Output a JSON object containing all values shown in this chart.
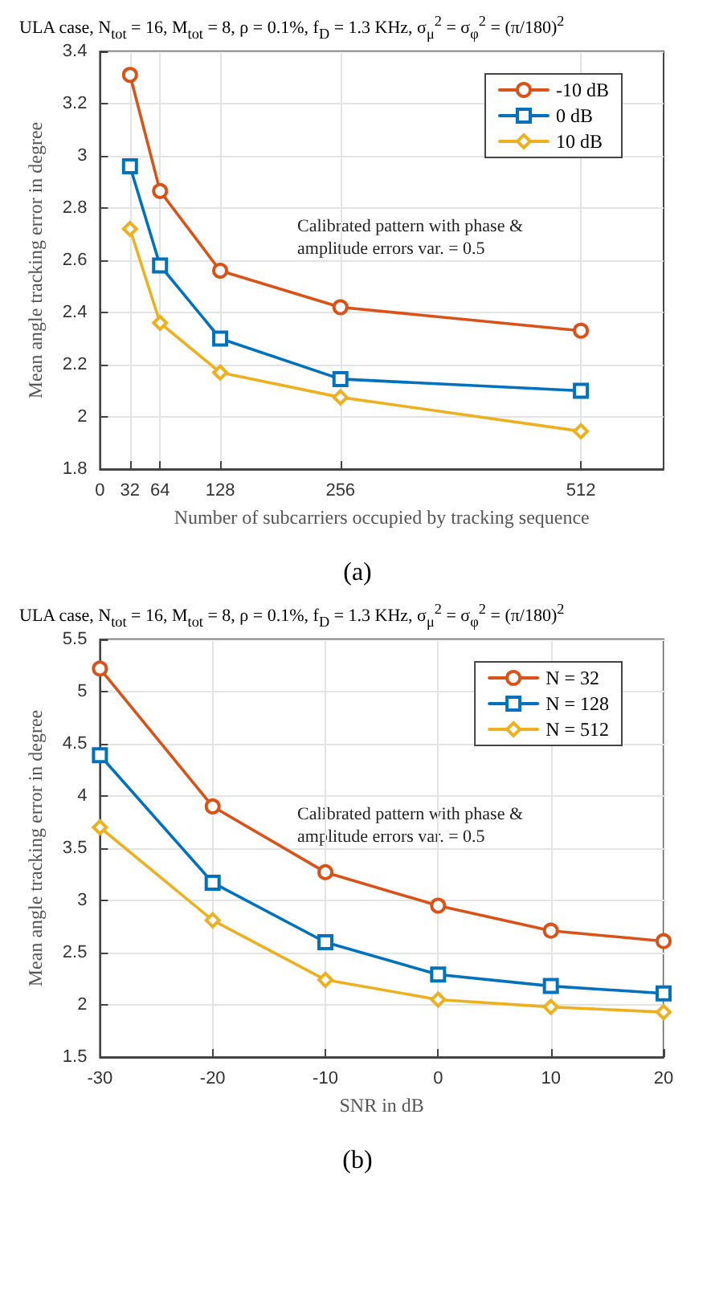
{
  "chart_data": [
    {
      "type": "line",
      "title": "ULA case, N$_{tot}$ = 16, M$_{tot}$ = 8, ρ = 0.1%, f$_{D}$ = 1.3 KHz, σ$_{μ}$$^{2}$ = σ$_{φ}$$^{2}$ = (π/180)$^{2}$",
      "xlabel": "Number of subcarriers occupied by tracking sequence",
      "ylabel": "Mean angle tracking error in degree",
      "x": [
        32,
        64,
        128,
        256,
        512
      ],
      "xlim": [
        0,
        600
      ],
      "xticks": [
        0,
        32,
        64,
        128,
        256,
        512
      ],
      "ylim": [
        1.8,
        3.4
      ],
      "yticks": [
        1.8,
        2,
        2.2,
        2.4,
        2.6,
        2.8,
        3,
        3.2,
        3.4
      ],
      "grid": true,
      "legend": "top right",
      "line_style": "solid",
      "annotations": [
        "Calibrated pattern with phase &\namplitude errors var. = 0.5",
        "(a)"
      ],
      "series": [
        {
          "name": "-10 dB",
          "color": "#d95319",
          "marker": "circle",
          "values": [
            3.31,
            2.865,
            2.56,
            2.42,
            2.33
          ]
        },
        {
          "name": "0 dB",
          "color": "#0072bd",
          "marker": "square",
          "values": [
            2.96,
            2.58,
            2.3,
            2.145,
            2.1
          ]
        },
        {
          "name": "10 dB",
          "color": "#edb120",
          "marker": "diamond",
          "values": [
            2.72,
            2.36,
            2.17,
            2.075,
            1.945
          ]
        }
      ]
    },
    {
      "type": "line",
      "title": "ULA case, N$_{tot}$ = 16, M$_{tot}$ = 8, ρ = 0.1%, f$_{D}$ = 1.3 KHz, σ$_{μ}$$^{2}$ = σ$_{φ}$$^{2}$ = (π/180)$^{2}$",
      "xlabel": "SNR in dB",
      "ylabel": "Mean angle tracking error in degree",
      "x": [
        -30,
        -20,
        -10,
        0,
        10,
        20
      ],
      "xlim": [
        -30,
        20
      ],
      "xticks": [
        -30,
        -20,
        -10,
        0,
        10,
        20
      ],
      "ylim": [
        1.5,
        5.5
      ],
      "yticks": [
        1.5,
        2,
        2.5,
        3,
        3.5,
        4,
        4.5,
        5,
        5.5
      ],
      "grid": true,
      "legend": "top right",
      "line_style": "solid",
      "annotations": [
        "Calibrated pattern with phase &\namplitude errors var. = 0.5",
        "(b)"
      ],
      "series": [
        {
          "name": "N = 32",
          "color": "#d95319",
          "marker": "circle",
          "values": [
            5.22,
            3.9,
            3.27,
            2.95,
            2.71,
            2.61
          ]
        },
        {
          "name": "N = 128",
          "color": "#0072bd",
          "marker": "square",
          "values": [
            4.39,
            3.17,
            2.6,
            2.29,
            2.18,
            2.11
          ]
        },
        {
          "name": "N = 512",
          "color": "#edb120",
          "marker": "diamond",
          "values": [
            3.7,
            2.81,
            2.24,
            2.05,
            1.98,
            1.93
          ]
        }
      ]
    }
  ]
}
